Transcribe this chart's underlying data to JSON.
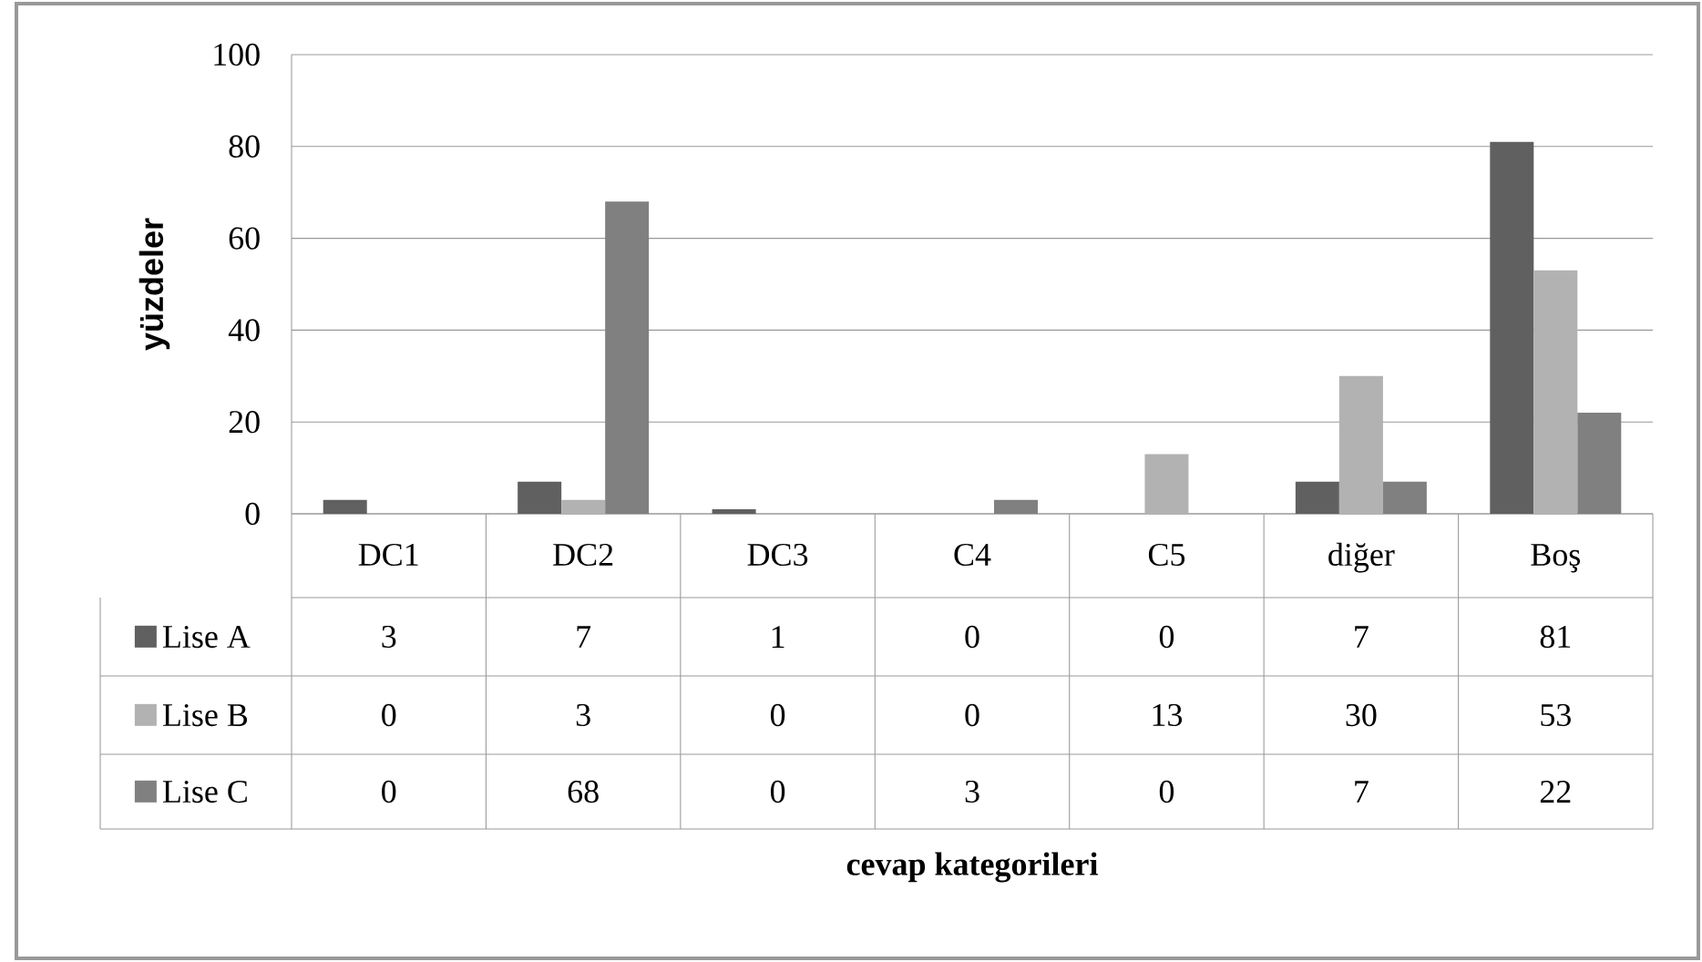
{
  "chart_data": {
    "type": "bar",
    "annotations": [
      "cevap kategorileri"
    ],
    "ylabel": "yüzdeler",
    "categories": [
      "DC1",
      "DC2",
      "DC3",
      "C4",
      "C5",
      "diğer",
      "Boş"
    ],
    "series": [
      {
        "name": "Lise A",
        "color": "#606060",
        "values": [
          3,
          7,
          1,
          0,
          0,
          7,
          81
        ]
      },
      {
        "name": "Lise B",
        "color": "#b2b2b2",
        "values": [
          0,
          3,
          0,
          0,
          13,
          30,
          53
        ]
      },
      {
        "name": "Lise C",
        "color": "#808080",
        "values": [
          0,
          68,
          0,
          3,
          0,
          7,
          22
        ]
      }
    ],
    "ylim": [
      0,
      100
    ],
    "yticks": [
      0,
      20,
      40,
      60,
      80,
      100
    ],
    "grid": "y",
    "legend": "bottom",
    "data_labels": true
  }
}
